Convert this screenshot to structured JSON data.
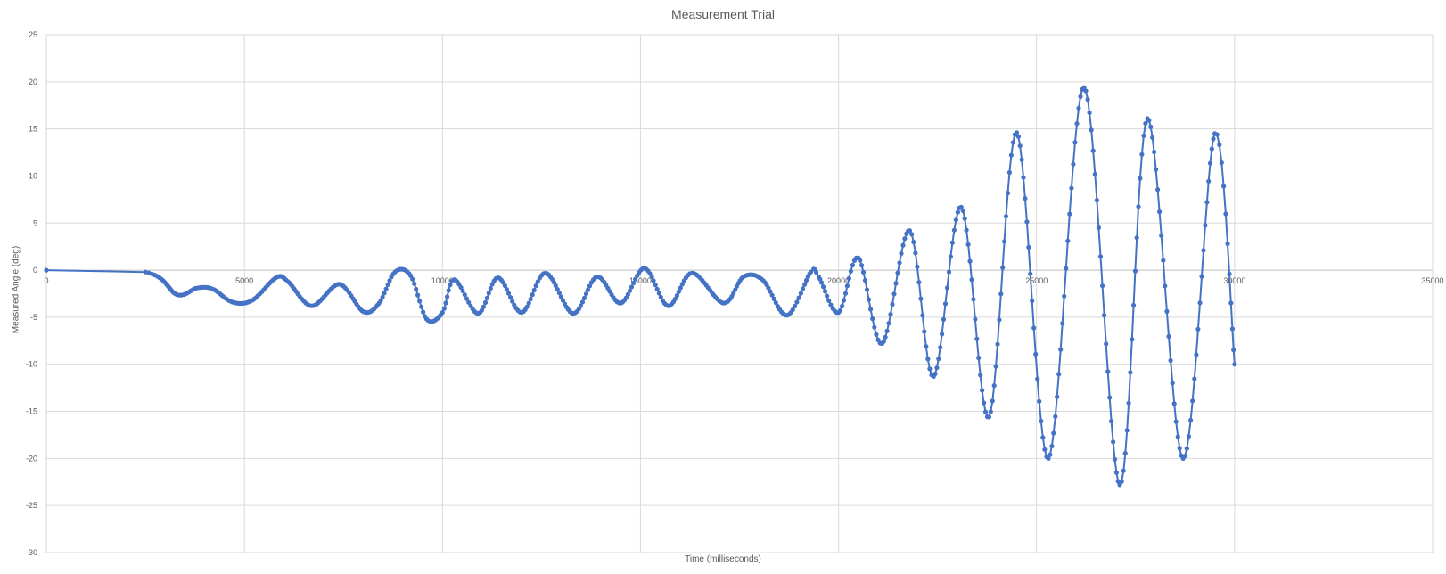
{
  "chart_data": {
    "type": "scatter",
    "title": "Measurement Trial",
    "xlabel": "Time (milliseconds)",
    "ylabel": "Measured Angle (deg)",
    "xlim": [
      0,
      35000
    ],
    "ylim": [
      -30,
      25
    ],
    "xticks": [
      0,
      5000,
      10000,
      15000,
      20000,
      25000,
      30000,
      35000
    ],
    "yticks": [
      25,
      20,
      15,
      10,
      5,
      0,
      -5,
      -10,
      -15,
      -20,
      -25,
      -30
    ],
    "grid": true,
    "legend": "none",
    "series_color": "#4472C4",
    "series": [
      {
        "points": [
          [
            0,
            0
          ],
          [
            2500,
            -0.2
          ],
          [
            3300,
            -2.6
          ],
          [
            3800,
            -1.9
          ],
          [
            4200,
            -2.0
          ],
          [
            4700,
            -3.4
          ],
          [
            5200,
            -3.2
          ],
          [
            5800,
            -0.8
          ],
          [
            6100,
            -1.2
          ],
          [
            6700,
            -3.8
          ],
          [
            7400,
            -1.5
          ],
          [
            8000,
            -4.4
          ],
          [
            8400,
            -3.5
          ],
          [
            8800,
            -0.2
          ],
          [
            9200,
            -0.6
          ],
          [
            9600,
            -5.2
          ],
          [
            10000,
            -4.5
          ],
          [
            10300,
            -1.0
          ],
          [
            10900,
            -4.6
          ],
          [
            11400,
            -0.8
          ],
          [
            12000,
            -4.5
          ],
          [
            12600,
            -0.3
          ],
          [
            13300,
            -4.6
          ],
          [
            13900,
            -0.7
          ],
          [
            14500,
            -3.5
          ],
          [
            15100,
            0.2
          ],
          [
            15700,
            -3.8
          ],
          [
            16300,
            -0.3
          ],
          [
            17100,
            -3.5
          ],
          [
            17600,
            -0.7
          ],
          [
            18100,
            -1.1
          ],
          [
            18700,
            -4.8
          ],
          [
            19300,
            -0.2
          ],
          [
            19500,
            -0.7
          ],
          [
            20000,
            -4.5
          ],
          [
            20500,
            1.3
          ],
          [
            21100,
            -7.8
          ],
          [
            21800,
            4.2
          ],
          [
            22400,
            -11.3
          ],
          [
            23100,
            6.7
          ],
          [
            23800,
            -15.6
          ],
          [
            24500,
            14.6
          ],
          [
            25300,
            -20.0
          ],
          [
            26200,
            19.4
          ],
          [
            27100,
            -22.8
          ],
          [
            27800,
            16.1
          ],
          [
            28700,
            -20.0
          ],
          [
            29500,
            14.5
          ],
          [
            30000,
            -10.0
          ]
        ]
      }
    ]
  }
}
